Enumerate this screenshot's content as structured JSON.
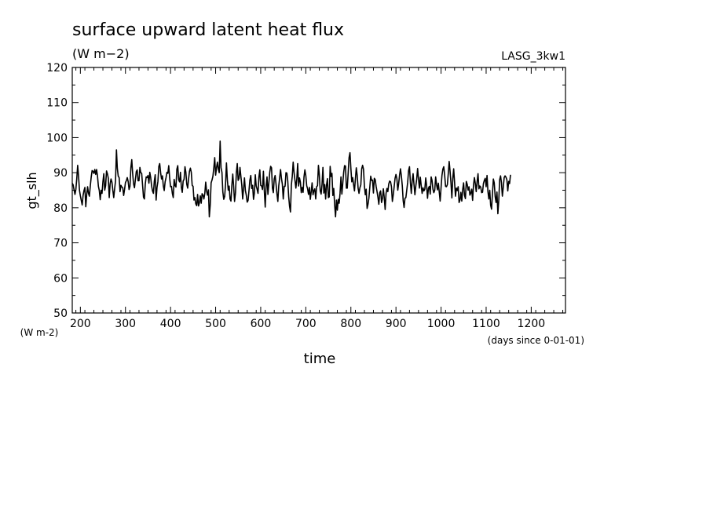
{
  "chart_data": {
    "type": "line",
    "title": "surface upward latent heat flux",
    "subtitle": "(W m−2)",
    "dataset_label": "LASG_3kw1",
    "xlabel": "time",
    "x_unit_label": "(days since 0-01-01)",
    "ylabel": "gt_slh",
    "y_unit_label": "(W m-2)",
    "xlim": [
      182,
      1276
    ],
    "ylim": [
      50,
      120
    ],
    "x_ticks": [
      200,
      300,
      400,
      500,
      600,
      700,
      800,
      900,
      1000,
      1100,
      1200
    ],
    "y_ticks": [
      50,
      60,
      70,
      80,
      90,
      100,
      110,
      120
    ],
    "grid": false,
    "x_start": 182,
    "x_step": 2,
    "series": [
      {
        "color": "#000000",
        "values": [
          87.0,
          86.5,
          85.1,
          83.8,
          85.2,
          88.3,
          92.1,
          88.9,
          85.0,
          83.4,
          82.1,
          80.8,
          83.5,
          84.9,
          85.8,
          80.3,
          83.7,
          86.0,
          84.1,
          83.3,
          86.2,
          88.7,
          90.6,
          90.4,
          89.8,
          90.9,
          89.5,
          90.9,
          89.0,
          86.1,
          84.9,
          82.3,
          85.0,
          84.1,
          87.4,
          89.7,
          85.0,
          86.3,
          90.5,
          89.7,
          88.4,
          82.9,
          86.8,
          88.2,
          87.3,
          85.0,
          82.9,
          85.4,
          87.7,
          96.5,
          91.2,
          89.0,
          88.6,
          84.6,
          86.4,
          85.9,
          85.7,
          83.5,
          85.2,
          87.2,
          87.7,
          88.6,
          87.5,
          85.2,
          86.1,
          91.4,
          93.7,
          89.7,
          86.8,
          85.7,
          88.0,
          90.3,
          90.8,
          87.7,
          87.7,
          91.5,
          90.0,
          89.8,
          86.4,
          83.0,
          82.5,
          86.8,
          88.8,
          88.6,
          89.2,
          87.0,
          90.1,
          88.6,
          86.2,
          84.8,
          84.1,
          87.6,
          89.4,
          82.2,
          85.8,
          87.5,
          91.8,
          92.6,
          90.0,
          88.2,
          89.1,
          86.2,
          84.9,
          87.4,
          88.6,
          90.1,
          89.8,
          92.0,
          88.6,
          86.0,
          86.1,
          84.1,
          82.9,
          88.1,
          86.3,
          85.9,
          91.0,
          92.0,
          88.0,
          87.4,
          90.1,
          85.8,
          84.4,
          87.6,
          88.1,
          91.7,
          90.1,
          86.7,
          85.6,
          88.2,
          90.4,
          91.3,
          90.1,
          86.4,
          86.1,
          82.2,
          82.9,
          81.1,
          80.6,
          83.8,
          80.5,
          81.4,
          83.4,
          81.3,
          84.0,
          83.6,
          82.5,
          84.1,
          87.3,
          84.7,
          83.6,
          85.1,
          77.4,
          80.8,
          87.1,
          87.9,
          89.0,
          91.4,
          94.3,
          89.3,
          91.4,
          93.0,
          91.0,
          90.0,
          99.0,
          91.4,
          90.1,
          84.5,
          82.4,
          83.2,
          86.7,
          92.8,
          88.0,
          85.0,
          86.2,
          82.5,
          81.9,
          86.4,
          89.6,
          86.0,
          81.8,
          84.2,
          90.0,
          92.6,
          87.8,
          88.4,
          91.5,
          89.0,
          86.5,
          82.5,
          85.5,
          88.5,
          84.9,
          83.6,
          81.6,
          82.1,
          84.9,
          87.9,
          89.2,
          85.5,
          86.4,
          82.4,
          84.2,
          89.4,
          86.2,
          85.3,
          84.1,
          88.7,
          90.8,
          86.4,
          86.2,
          85.2,
          90.4,
          84.8,
          80.2,
          86.2,
          88.8,
          83.8,
          86.9,
          90.0,
          91.8,
          91.4,
          85.6,
          84.3,
          88.2,
          89.2,
          86.7,
          84.0,
          81.8,
          86.2,
          88.5,
          90.9,
          88.4,
          86.7,
          82.5,
          86.1,
          86.1,
          90.0,
          89.9,
          87.6,
          83.2,
          80.4,
          78.8,
          86.5,
          89.0,
          93.0,
          90.0,
          87.8,
          85.6,
          88.1,
          92.6,
          86.2,
          88.5,
          87.3,
          84.3,
          85.8,
          84.4,
          88.8,
          90.8,
          89.2,
          86.3,
          85.4,
          83.8,
          85.8,
          82.4,
          84.6,
          87.1,
          83.7,
          84.9,
          85.4,
          82.5,
          86.0,
          86.3,
          92.1,
          89.4,
          84.8,
          83.9,
          86.7,
          91.5,
          84.2,
          86.6,
          82.5,
          86.5,
          88.3,
          82.9,
          83.1,
          91.8,
          88.9,
          89.8,
          83.5,
          85.5,
          80.8,
          77.4,
          82.2,
          79.3,
          82.4,
          81.3,
          84.2,
          88.8,
          83.9,
          86.9,
          90.1,
          92.0,
          91.9,
          85.6,
          85.6,
          89.9,
          94.3,
          95.7,
          91.2,
          87.4,
          88.6,
          86.6,
          84.8,
          88.2,
          91.4,
          89.2,
          85.6,
          84.1,
          85.7,
          86.5,
          91.1,
          92.1,
          91.0,
          86.2,
          83.7,
          85.3,
          79.8,
          81.0,
          82.8,
          85.9,
          89.0,
          87.8,
          87.9,
          84.2,
          88.4,
          88.0,
          86.1,
          84.6,
          83.0,
          81.0,
          84.3,
          84.8,
          81.5,
          82.6,
          85.4,
          82.9,
          79.5,
          84.1,
          85.5,
          84.6,
          86.8,
          87.6,
          87.4,
          86.0,
          81.8,
          83.7,
          86.0,
          88.4,
          89.5,
          88.3,
          85.0,
          86.9,
          89.3,
          91.1,
          89.1,
          86.3,
          82.0,
          80.1,
          82.7,
          82.9,
          85.1,
          87.3,
          90.6,
          91.7,
          87.2,
          84.1,
          87.7,
          89.7,
          86.6,
          83.7,
          86.2,
          88.2,
          91.2,
          88.2,
          85.6,
          88.7,
          86.3,
          84.1,
          85.7,
          84.8,
          85.3,
          88.5,
          86.3,
          82.7,
          85.6,
          86.1,
          83.9,
          88.8,
          87.8,
          85.3,
          84.3,
          85.0,
          88.8,
          86.6,
          85.1,
          87.0,
          84.5,
          81.9,
          85.7,
          89.2,
          91.0,
          91.7,
          89.3,
          86.1,
          86.0,
          86.6,
          89.7,
          93.2,
          90.4,
          87.1,
          82.8,
          88.3,
          91.1,
          87.2,
          83.3,
          85.6,
          84.9,
          86.0,
          81.5,
          82.2,
          84.4,
          81.9,
          85.2,
          87.1,
          83.6,
          82.6,
          87.5,
          86.7,
          85.0,
          86.0,
          83.6,
          84.2,
          85.3,
          82.1,
          86.5,
          88.6,
          86.9,
          84.6,
          87.5,
          89.7,
          85.4,
          86.2,
          85.9,
          84.3,
          84.4,
          86.9,
          87.8,
          88.4,
          86.0,
          89.2,
          84.6,
          82.5,
          85.0,
          80.7,
          79.6,
          84.0,
          88.2,
          87.1,
          83.2,
          81.5,
          84.5,
          78.3,
          82.0,
          88.0,
          89.1,
          87.1,
          83.3,
          85.8,
          88.6,
          89.1,
          88.7,
          88.0,
          84.8,
          87.5,
          86.9,
          89.4
        ]
      }
    ]
  }
}
